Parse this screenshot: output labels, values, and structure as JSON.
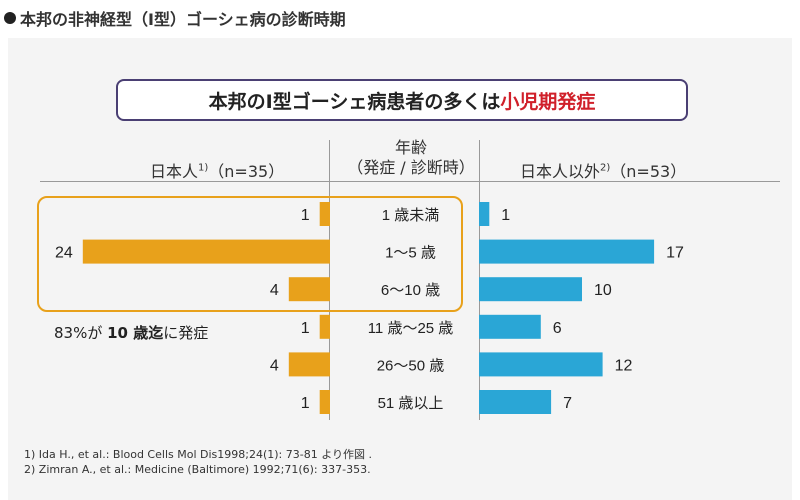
{
  "page_title": "本邦の非神経型（Ⅰ型）ゴーシェ病の診断時期",
  "headline": {
    "prefix": "本邦のⅠ型ゴーシェ病患者の多くは",
    "accent": "小児期発症"
  },
  "colors": {
    "japan": "#e8a11b",
    "other": "#2aa6d6",
    "headline_border": "#4a3f73",
    "accent": "#d0202a",
    "highlight": "#e8a11b"
  },
  "headers": {
    "left": "日本人",
    "left_sup": "1)",
    "left_n": "（n=35）",
    "center_line1": "年齢",
    "center_line2": "（発症 / 診断時）",
    "right": "日本人以外",
    "right_sup": "2)",
    "right_n": "（n=53）"
  },
  "note": {
    "pct": "83%が ",
    "bold": "10 歳迄",
    "rest": "に発症"
  },
  "footnotes": [
    "1) Ida H., et al.: Blood Cells Mol Dis1998;24(1): 73-81 より作図 .",
    "2) Zimran A., et al.: Medicine (Baltimore) 1992;71(6): 337-353."
  ],
  "chart_data": {
    "type": "bar",
    "orientation": "horizontal-diverging",
    "title": "本邦のⅠ型ゴーシェ病患者の多くは小児期発症",
    "categories": [
      "1 歳未満",
      "1〜5 歳",
      "6〜10 歳",
      "11 歳〜25 歳",
      "26〜50 歳",
      "51 歳以上"
    ],
    "series": [
      {
        "name": "日本人（n=35）",
        "values": [
          1,
          24,
          4,
          1,
          4,
          1
        ]
      },
      {
        "name": "日本人以外（n=53）",
        "values": [
          1,
          17,
          10,
          6,
          12,
          7
        ]
      }
    ],
    "xlabel": "",
    "ylabel": "年齢（発症 / 診断時）"
  }
}
